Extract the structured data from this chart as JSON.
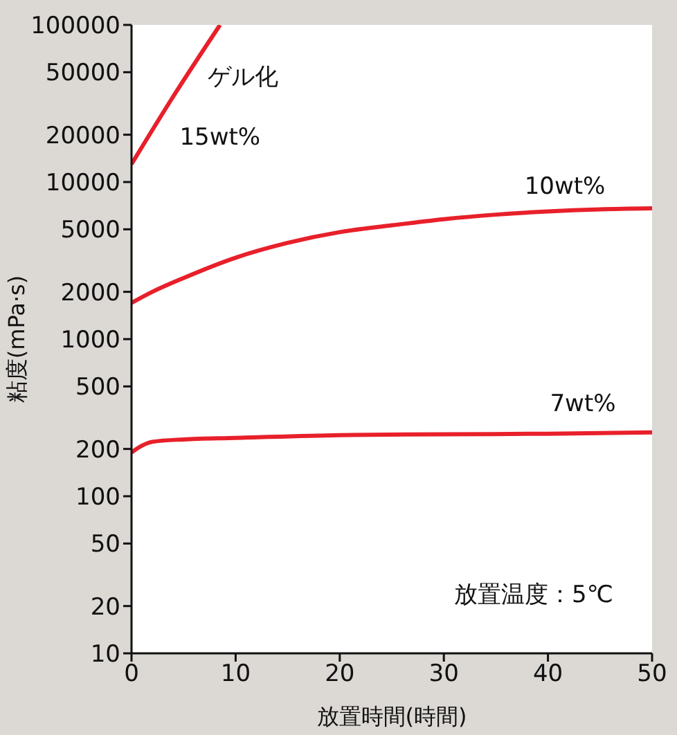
{
  "chart_data": {
    "type": "line",
    "xlabel": "放置時間(時間)",
    "ylabel": "粘度(mPa·s)",
    "log": "y",
    "xlim": [
      0,
      50
    ],
    "xticks": [
      0,
      10,
      20,
      30,
      40,
      50
    ],
    "ylim": [
      10,
      100000
    ],
    "yticks": [
      10,
      20,
      50,
      100,
      200,
      500,
      1000,
      2000,
      5000,
      10000,
      20000,
      50000,
      100000
    ],
    "grid": false,
    "legend": false,
    "marker": "none",
    "line_style": "solid",
    "series": [
      {
        "name": "15wt%",
        "color": "#e8202a",
        "x": [
          0,
          4,
          8.5
        ],
        "values": [
          13000,
          35000,
          100000
        ]
      },
      {
        "name": "10wt%",
        "color": "#e8202a",
        "x": [
          0,
          2,
          5,
          10,
          15,
          20,
          25,
          30,
          35,
          40,
          45,
          50
        ],
        "values": [
          1700,
          2000,
          2450,
          3300,
          4100,
          4800,
          5300,
          5800,
          6200,
          6500,
          6700,
          6800
        ]
      },
      {
        "name": "7wt%",
        "color": "#e8202a",
        "x": [
          0,
          1,
          2,
          5,
          10,
          20,
          30,
          40,
          50
        ],
        "values": [
          190,
          210,
          222,
          230,
          235,
          245,
          248,
          250,
          255
        ]
      }
    ],
    "annotations": [
      "ゲル化",
      "放置温度：5℃"
    ]
  }
}
